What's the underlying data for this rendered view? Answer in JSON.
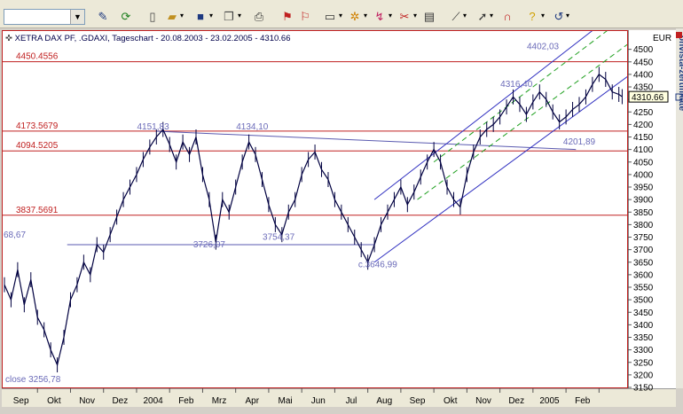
{
  "toolbar": {
    "combo_value": "",
    "icons": [
      "pen-icon",
      "refresh-icon",
      "new-document-icon",
      "open-folder-icon",
      "save-icon",
      "copy-icon",
      "print-icon",
      "flag-icon",
      "flag-alt-icon",
      "window-icon",
      "indicator-icon",
      "trend-icon",
      "tools-icon",
      "properties-icon",
      "line-tool-icon",
      "pointer-icon",
      "magnet-icon",
      "help-icon",
      "undo-icon"
    ]
  },
  "chart": {
    "title": "XETRA DAX PF, .GDAXI, Tageschart - 20.08.2003 - 23.02.2005 - 4310.66",
    "currency": "EUR",
    "last_price": "4310.66",
    "last_value": 4310.66,
    "vertical_label": "onvista-zertifikate",
    "close_label": "close 3256,78",
    "start_label": "68,67"
  },
  "chart_data": {
    "type": "line",
    "xlabel": "",
    "ylabel": "",
    "ylim": [
      3150,
      4520
    ],
    "x_range": [
      0,
      18.85
    ],
    "x_tick_labels": [
      "Sep",
      "Okt",
      "Nov",
      "Dez",
      "2004",
      "Feb",
      "Mrz",
      "Apr",
      "Mai",
      "Jun",
      "Jul",
      "Aug",
      "Sep",
      "Okt",
      "Nov",
      "Dez",
      "2005",
      "Feb"
    ],
    "y_tick_labels": [
      "4500",
      "4450",
      "4400",
      "4350",
      "4300",
      "4250",
      "4200",
      "4150",
      "4100",
      "4050",
      "4000",
      "3950",
      "3900",
      "3850",
      "3800",
      "3750",
      "3700",
      "3650",
      "3600",
      "3550",
      "3500",
      "3450",
      "3400",
      "3350",
      "3300",
      "3250",
      "3200",
      "3150"
    ],
    "horizontal_lines": [
      {
        "label": "4450.4556",
        "value": 4450.4556
      },
      {
        "label": "4173.5679",
        "value": 4173.5679
      },
      {
        "label": "4094.5205",
        "value": 4094.5205
      },
      {
        "label": "3837.5691",
        "value": 3837.5691
      }
    ],
    "annotations": [
      {
        "text": "4151,83",
        "x": 4.5,
        "y": 4180
      },
      {
        "text": "4134,10",
        "x": 7.5,
        "y": 4180
      },
      {
        "text": "3726,07",
        "x": 6.2,
        "y": 3710
      },
      {
        "text": "3754,37",
        "x": 8.3,
        "y": 3740
      },
      {
        "text": "c.3646,99",
        "x": 11.3,
        "y": 3630
      },
      {
        "text": "4316,40",
        "x": 15.5,
        "y": 4350
      },
      {
        "text": "4402,03",
        "x": 16.3,
        "y": 4500
      },
      {
        "text": "4201,89",
        "x": 17.4,
        "y": 4120
      }
    ],
    "series": [
      {
        "x": [
          0,
          0.2,
          0.4,
          0.6,
          0.8,
          1.0,
          1.2,
          1.4,
          1.6,
          1.8,
          2.0,
          2.2,
          2.4,
          2.6,
          2.8,
          3.0,
          3.2,
          3.4,
          3.6,
          3.8,
          4.0,
          4.2,
          4.4,
          4.6,
          4.8,
          5.0,
          5.2,
          5.4,
          5.6,
          5.8,
          6.0,
          6.2,
          6.4,
          6.6,
          6.8,
          7.0,
          7.2,
          7.4,
          7.6,
          7.8,
          8.0,
          8.2,
          8.4,
          8.6,
          8.8,
          9.0,
          9.2,
          9.4,
          9.6,
          9.8,
          10.0,
          10.2,
          10.4,
          10.6,
          10.8,
          11.0,
          11.2,
          11.4,
          11.6,
          11.8,
          12.0,
          12.2,
          12.4,
          12.6,
          12.8,
          13.0,
          13.2,
          13.4,
          13.6,
          13.8,
          14.0,
          14.2,
          14.4,
          14.6,
          14.8,
          15.0,
          15.2,
          15.4,
          15.6,
          15.8,
          16.0,
          16.2,
          16.4,
          16.6,
          16.8,
          17.0,
          17.2,
          17.4,
          17.6,
          17.8,
          18.0,
          18.2,
          18.4,
          18.6,
          18.7
        ],
        "values": [
          3560,
          3500,
          3620,
          3480,
          3580,
          3430,
          3380,
          3300,
          3240,
          3350,
          3500,
          3560,
          3650,
          3600,
          3720,
          3690,
          3760,
          3830,
          3900,
          3950,
          4000,
          4060,
          4110,
          4150,
          4180,
          4120,
          4050,
          4130,
          4080,
          4150,
          4000,
          3900,
          3730,
          3900,
          3850,
          3950,
          4050,
          4130,
          4080,
          3980,
          3880,
          3800,
          3760,
          3850,
          3900,
          4000,
          4060,
          4090,
          4020,
          3980,
          3900,
          3850,
          3800,
          3750,
          3700,
          3650,
          3720,
          3800,
          3850,
          3900,
          3950,
          3880,
          3930,
          3990,
          4050,
          4100,
          4050,
          3950,
          3900,
          3870,
          4000,
          4090,
          4150,
          4180,
          4200,
          4230,
          4270,
          4310,
          4280,
          4240,
          4290,
          4330,
          4300,
          4250,
          4210,
          4230,
          4260,
          4280,
          4310,
          4360,
          4400,
          4380,
          4330,
          4320,
          4311
        ]
      }
    ],
    "trendlines": [
      {
        "type": "solid",
        "color": "#5a5ab0",
        "x1": 4.6,
        "y1": 4173,
        "x2": 17.3,
        "y2": 4100
      },
      {
        "type": "solid",
        "color": "#5a5ab0",
        "x1": 1.9,
        "y1": 3720,
        "x2": 11.2,
        "y2": 3720
      },
      {
        "type": "solid",
        "color": "#3030c0",
        "x1": 11.2,
        "y1": 3650,
        "x2": 20.5,
        "y2": 4550
      },
      {
        "type": "solid",
        "color": "#3030c0",
        "x1": 11.2,
        "y1": 3900,
        "x2": 20.0,
        "y2": 4800
      },
      {
        "type": "dashed",
        "color": "#20a020",
        "x1": 12.5,
        "y1": 3900,
        "x2": 20.3,
        "y2": 4660
      },
      {
        "type": "dashed",
        "color": "#20a020",
        "x1": 13.0,
        "y1": 4050,
        "x2": 20.3,
        "y2": 4780
      }
    ]
  }
}
